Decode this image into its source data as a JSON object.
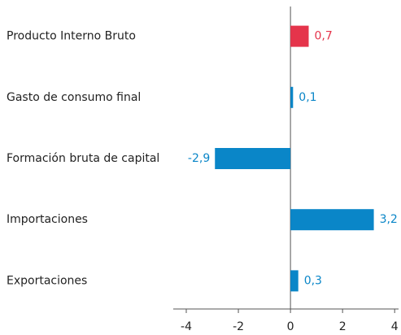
{
  "chart_data": {
    "type": "barh",
    "categories": [
      "Producto Interno Bruto",
      "Gasto de consumo final",
      "Formación bruta de capital",
      "Importaciones",
      "Exportaciones"
    ],
    "values": [
      0.7,
      0.1,
      -2.9,
      3.2,
      0.3
    ],
    "value_labels": [
      "0,7",
      "0,1",
      "-2,9",
      "3,2",
      "0,3"
    ],
    "colors": [
      "#e5344b",
      "#0a86c8",
      "#0a86c8",
      "#0a86c8",
      "#0a86c8"
    ],
    "xlim": [
      -4.5,
      4.15
    ],
    "xticks": [
      -4,
      -2,
      0,
      2,
      4
    ]
  }
}
